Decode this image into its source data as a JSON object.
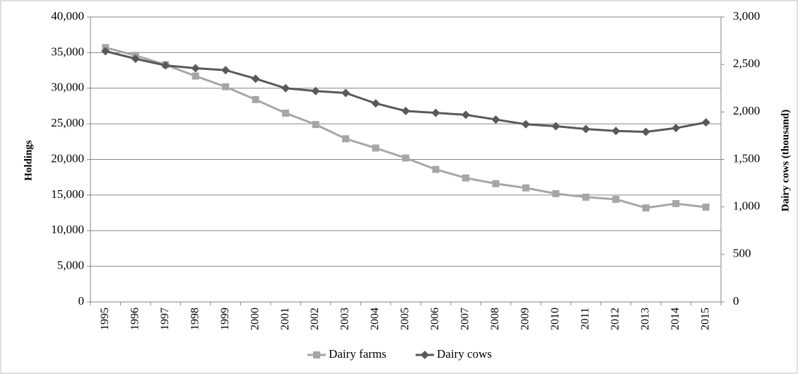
{
  "chart_data": {
    "type": "line",
    "y_label": "Holdings",
    "y2_label": "Dairy cows (thousand)",
    "categories": [
      "1995",
      "1996",
      "1997",
      "1998",
      "1999",
      "2000",
      "2001",
      "2002",
      "2003",
      "2004",
      "2005",
      "2006",
      "2007",
      "2008",
      "2009",
      "2010",
      "2011",
      "2012",
      "2013",
      "2014",
      "2015"
    ],
    "series": [
      {
        "name": "Dairy farms",
        "color": "#a6a6a6",
        "marker": "square",
        "values": [
          35700,
          34600,
          33300,
          31700,
          30200,
          28400,
          26500,
          24900,
          22900,
          21600,
          20200,
          18600,
          17400,
          16600,
          16000,
          15200,
          14700,
          14400,
          13200,
          13800,
          13300
        ]
      },
      {
        "name": "Dairy cows",
        "color": "#595959",
        "marker": "diamond",
        "axis": "y2",
        "values": [
          2640,
          2560,
          2490,
          2460,
          2440,
          2350,
          2250,
          2220,
          2200,
          2090,
          2010,
          1990,
          1970,
          1920,
          1870,
          1850,
          1820,
          1800,
          1790,
          1830,
          1890
        ]
      }
    ],
    "ylim": [
      0,
      40000
    ],
    "yticks": [
      0,
      {
        "value": 5000,
        "label": "5,000"
      },
      {
        "value": 10000,
        "label": "10,000"
      },
      {
        "value": 15000,
        "label": "15,000"
      },
      {
        "value": 20000,
        "label": "20,000"
      },
      {
        "value": 25000,
        "label": "25,000"
      },
      {
        "value": 30000,
        "label": "30,000"
      },
      {
        "value": 35000,
        "label": "35,000"
      },
      {
        "value": 40000,
        "label": "40,000"
      }
    ],
    "y2lim": [
      0,
      3000
    ],
    "y2ticks": [
      0,
      500,
      {
        "value": 1000,
        "label": "1,000"
      },
      {
        "value": 1500,
        "label": "1,500"
      },
      {
        "value": 2000,
        "label": "2,000"
      },
      {
        "value": 2500,
        "label": "2,500"
      },
      {
        "value": 3000,
        "label": "3,000"
      }
    ],
    "grid": true,
    "legend": "bottom"
  }
}
